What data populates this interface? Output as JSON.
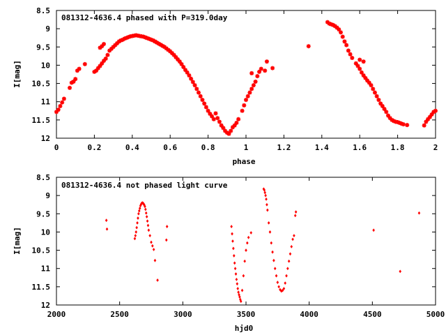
{
  "colors": {
    "points": "#ff0000",
    "axes": "#000000",
    "background": "#ffffff"
  },
  "chart_data": [
    {
      "type": "scatter",
      "title": "081312-4636.4 phased with P=319.0day",
      "xlabel": "phase",
      "ylabel": "I[mag]",
      "xlim": [
        0,
        2
      ],
      "ylim": [
        8.5,
        12
      ],
      "y_inverted": true,
      "grid": false,
      "marker": "plus-star",
      "xticks": [
        "0",
        "0.2",
        "0.4",
        "0.6",
        "0.8",
        "1",
        "1.2",
        "1.4",
        "1.6",
        "1.8",
        "2"
      ],
      "yticks": [
        "8.5",
        "9",
        "9.5",
        "10",
        "10.5",
        "11",
        "11.5",
        "12"
      ],
      "series": [
        {
          "points": [
            [
              0.0,
              11.28
            ],
            [
              0.01,
              11.22
            ],
            [
              0.02,
              11.12
            ],
            [
              0.03,
              11.02
            ],
            [
              0.04,
              10.92
            ],
            [
              0.07,
              10.62
            ],
            [
              0.08,
              10.48
            ],
            [
              0.09,
              10.45
            ],
            [
              0.1,
              10.38
            ],
            [
              0.11,
              10.15
            ],
            [
              0.12,
              10.1
            ],
            [
              0.15,
              9.97
            ],
            [
              0.2,
              10.18
            ],
            [
              0.21,
              10.15
            ],
            [
              0.22,
              10.08
            ],
            [
              0.23,
              10.02
            ],
            [
              0.24,
              9.95
            ],
            [
              0.25,
              9.88
            ],
            [
              0.26,
              9.82
            ],
            [
              0.27,
              9.72
            ],
            [
              0.23,
              9.52
            ],
            [
              0.24,
              9.48
            ],
            [
              0.25,
              9.42
            ],
            [
              0.28,
              9.6
            ],
            [
              0.29,
              9.55
            ],
            [
              0.3,
              9.5
            ],
            [
              0.31,
              9.45
            ],
            [
              0.32,
              9.4
            ],
            [
              0.33,
              9.35
            ],
            [
              0.34,
              9.32
            ],
            [
              0.35,
              9.3
            ],
            [
              0.36,
              9.27
            ],
            [
              0.37,
              9.25
            ],
            [
              0.38,
              9.23
            ],
            [
              0.39,
              9.21
            ],
            [
              0.4,
              9.2
            ],
            [
              0.41,
              9.19
            ],
            [
              0.42,
              9.18
            ],
            [
              0.43,
              9.19
            ],
            [
              0.44,
              9.2
            ],
            [
              0.45,
              9.21
            ],
            [
              0.46,
              9.22
            ],
            [
              0.47,
              9.24
            ],
            [
              0.48,
              9.26
            ],
            [
              0.49,
              9.28
            ],
            [
              0.5,
              9.3
            ],
            [
              0.51,
              9.32
            ],
            [
              0.52,
              9.35
            ],
            [
              0.53,
              9.38
            ],
            [
              0.54,
              9.41
            ],
            [
              0.55,
              9.44
            ],
            [
              0.56,
              9.47
            ],
            [
              0.57,
              9.5
            ],
            [
              0.58,
              9.54
            ],
            [
              0.59,
              9.58
            ],
            [
              0.6,
              9.62
            ],
            [
              0.61,
              9.67
            ],
            [
              0.62,
              9.72
            ],
            [
              0.63,
              9.78
            ],
            [
              0.64,
              9.84
            ],
            [
              0.65,
              9.9
            ],
            [
              0.66,
              9.97
            ],
            [
              0.67,
              10.05
            ],
            [
              0.68,
              10.13
            ],
            [
              0.69,
              10.2
            ],
            [
              0.7,
              10.28
            ],
            [
              0.71,
              10.37
            ],
            [
              0.72,
              10.46
            ],
            [
              0.73,
              10.55
            ],
            [
              0.74,
              10.65
            ],
            [
              0.75,
              10.75
            ],
            [
              0.76,
              10.85
            ],
            [
              0.77,
              10.95
            ],
            [
              0.78,
              11.05
            ],
            [
              0.79,
              11.15
            ],
            [
              0.8,
              11.25
            ],
            [
              0.81,
              11.33
            ],
            [
              0.82,
              11.4
            ],
            [
              0.83,
              11.48
            ],
            [
              0.84,
              11.32
            ],
            [
              0.85,
              11.45
            ],
            [
              0.86,
              11.55
            ],
            [
              0.87,
              11.65
            ],
            [
              0.88,
              11.72
            ],
            [
              0.89,
              11.8
            ],
            [
              0.9,
              11.85
            ],
            [
              0.91,
              11.88
            ],
            [
              0.92,
              11.8
            ],
            [
              0.93,
              11.7
            ],
            [
              0.94,
              11.65
            ],
            [
              0.95,
              11.58
            ],
            [
              0.96,
              11.48
            ],
            [
              0.98,
              11.25
            ],
            [
              0.99,
              11.1
            ],
            [
              1.0,
              10.95
            ],
            [
              1.01,
              10.85
            ],
            [
              1.02,
              10.75
            ],
            [
              1.03,
              10.65
            ],
            [
              1.04,
              10.55
            ],
            [
              1.05,
              10.45
            ],
            [
              1.06,
              10.3
            ],
            [
              1.07,
              10.18
            ],
            [
              1.08,
              10.1
            ],
            [
              1.03,
              10.22
            ],
            [
              1.1,
              10.15
            ],
            [
              1.11,
              9.9
            ],
            [
              1.14,
              10.08
            ],
            [
              1.33,
              9.48
            ],
            [
              1.43,
              8.82
            ],
            [
              1.44,
              8.86
            ],
            [
              1.45,
              8.88
            ],
            [
              1.46,
              8.9
            ],
            [
              1.47,
              8.93
            ],
            [
              1.48,
              8.97
            ],
            [
              1.49,
              9.02
            ],
            [
              1.5,
              9.1
            ],
            [
              1.51,
              9.22
            ],
            [
              1.52,
              9.35
            ],
            [
              1.53,
              9.45
            ],
            [
              1.54,
              9.6
            ],
            [
              1.55,
              9.7
            ],
            [
              1.56,
              9.8
            ],
            [
              1.58,
              9.95
            ],
            [
              1.59,
              10.02
            ],
            [
              1.6,
              10.1
            ],
            [
              1.61,
              10.2
            ],
            [
              1.62,
              10.28
            ],
            [
              1.63,
              10.35
            ],
            [
              1.64,
              10.42
            ],
            [
              1.65,
              10.48
            ],
            [
              1.66,
              10.55
            ],
            [
              1.67,
              10.65
            ],
            [
              1.68,
              10.75
            ],
            [
              1.69,
              10.85
            ],
            [
              1.7,
              10.95
            ],
            [
              1.71,
              11.05
            ],
            [
              1.72,
              11.12
            ],
            [
              1.73,
              11.2
            ],
            [
              1.74,
              11.28
            ],
            [
              1.75,
              11.38
            ],
            [
              1.76,
              11.45
            ],
            [
              1.77,
              11.5
            ],
            [
              1.78,
              11.53
            ],
            [
              1.79,
              11.55
            ],
            [
              1.8,
              11.56
            ],
            [
              1.81,
              11.58
            ],
            [
              1.82,
              11.6
            ],
            [
              1.83,
              11.62
            ],
            [
              1.85,
              11.64
            ],
            [
              1.6,
              9.85
            ],
            [
              1.62,
              9.9
            ],
            [
              1.94,
              11.65
            ],
            [
              1.95,
              11.55
            ],
            [
              1.96,
              11.48
            ],
            [
              1.97,
              11.42
            ],
            [
              1.98,
              11.35
            ],
            [
              1.99,
              11.28
            ],
            [
              2.0,
              11.25
            ]
          ]
        }
      ]
    },
    {
      "type": "scatter",
      "title": "081312-4636.4 not phased light curve",
      "xlabel": "hjd0",
      "ylabel": "I[mag]",
      "xlim": [
        2000,
        5000
      ],
      "ylim": [
        8.5,
        12
      ],
      "y_inverted": true,
      "grid": false,
      "marker": "diamond",
      "xticks": [
        "2000",
        "2500",
        "3000",
        "3500",
        "4000",
        "4500",
        "5000"
      ],
      "yticks": [
        "8.5",
        "9",
        "9.5",
        "10",
        "10.5",
        "11",
        "11.5",
        "12"
      ],
      "series": [
        {
          "points": [
            [
              2395,
              9.68
            ],
            [
              2400,
              9.92
            ],
            [
              2620,
              10.18
            ],
            [
              2625,
              10.1
            ],
            [
              2630,
              10.0
            ],
            [
              2635,
              9.88
            ],
            [
              2640,
              9.75
            ],
            [
              2645,
              9.62
            ],
            [
              2650,
              9.5
            ],
            [
              2655,
              9.42
            ],
            [
              2660,
              9.35
            ],
            [
              2665,
              9.28
            ],
            [
              2670,
              9.24
            ],
            [
              2675,
              9.21
            ],
            [
              2680,
              9.2
            ],
            [
              2685,
              9.21
            ],
            [
              2690,
              9.23
            ],
            [
              2695,
              9.26
            ],
            [
              2700,
              9.3
            ],
            [
              2705,
              9.38
            ],
            [
              2710,
              9.48
            ],
            [
              2715,
              9.58
            ],
            [
              2720,
              9.7
            ],
            [
              2725,
              9.82
            ],
            [
              2730,
              9.95
            ],
            [
              2740,
              10.1
            ],
            [
              2750,
              10.28
            ],
            [
              2760,
              10.38
            ],
            [
              2770,
              10.48
            ],
            [
              2780,
              10.78
            ],
            [
              2800,
              11.32
            ],
            [
              2870,
              10.22
            ],
            [
              2875,
              9.85
            ],
            [
              3385,
              9.85
            ],
            [
              3390,
              10.05
            ],
            [
              3395,
              10.25
            ],
            [
              3400,
              10.45
            ],
            [
              3405,
              10.65
            ],
            [
              3410,
              10.85
            ],
            [
              3415,
              11.0
            ],
            [
              3420,
              11.15
            ],
            [
              3425,
              11.3
            ],
            [
              3430,
              11.42
            ],
            [
              3435,
              11.55
            ],
            [
              3440,
              11.65
            ],
            [
              3445,
              11.72
            ],
            [
              3450,
              11.78
            ],
            [
              3455,
              11.85
            ],
            [
              3460,
              11.9
            ],
            [
              3470,
              11.6
            ],
            [
              3480,
              11.2
            ],
            [
              3490,
              10.8
            ],
            [
              3500,
              10.5
            ],
            [
              3510,
              10.3
            ],
            [
              3520,
              10.15
            ],
            [
              3540,
              10.02
            ],
            [
              3640,
              8.82
            ],
            [
              3645,
              8.85
            ],
            [
              3650,
              8.92
            ],
            [
              3655,
              9.0
            ],
            [
              3660,
              9.1
            ],
            [
              3665,
              9.25
            ],
            [
              3670,
              9.4
            ],
            [
              3680,
              9.75
            ],
            [
              3690,
              10.0
            ],
            [
              3700,
              10.3
            ],
            [
              3710,
              10.55
            ],
            [
              3720,
              10.78
            ],
            [
              3730,
              11.0
            ],
            [
              3740,
              11.2
            ],
            [
              3750,
              11.38
            ],
            [
              3760,
              11.5
            ],
            [
              3770,
              11.58
            ],
            [
              3780,
              11.62
            ],
            [
              3790,
              11.6
            ],
            [
              3800,
              11.55
            ],
            [
              3810,
              11.4
            ],
            [
              3820,
              11.2
            ],
            [
              3830,
              11.0
            ],
            [
              3840,
              10.8
            ],
            [
              3850,
              10.6
            ],
            [
              3860,
              10.4
            ],
            [
              3870,
              10.2
            ],
            [
              3880,
              10.1
            ],
            [
              3890,
              9.55
            ],
            [
              3895,
              9.45
            ],
            [
              4510,
              9.95
            ],
            [
              4720,
              11.08
            ],
            [
              4870,
              9.48
            ]
          ]
        }
      ]
    }
  ]
}
